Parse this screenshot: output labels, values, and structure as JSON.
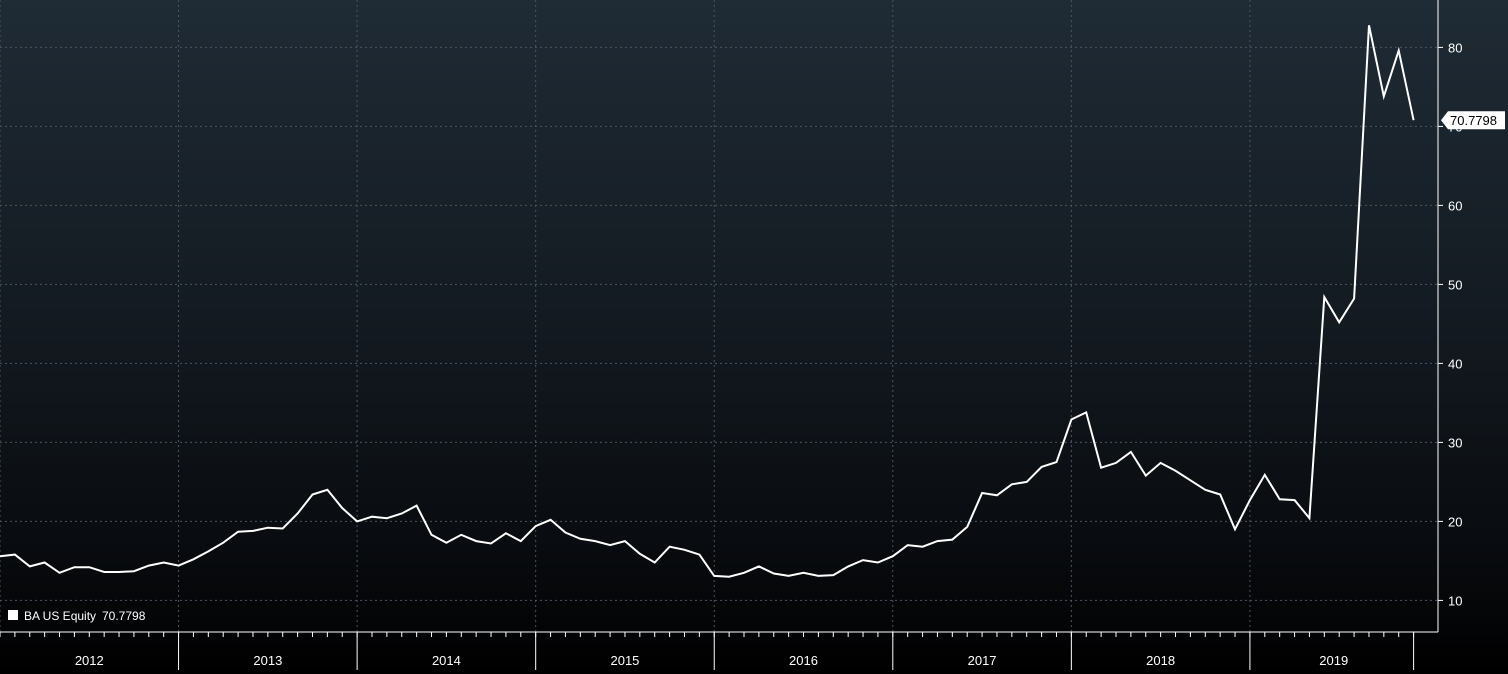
{
  "chart_data": {
    "type": "line",
    "title": "",
    "xlabel": "",
    "ylabel": "",
    "x_tick_labels": [
      "2012",
      "2013",
      "2014",
      "2015",
      "2016",
      "2017",
      "2018",
      "2019"
    ],
    "y_ticks": [
      10,
      20,
      30,
      40,
      50,
      60,
      70,
      80
    ],
    "ylim": [
      6,
      86
    ],
    "grid": true,
    "legend_position": "bottom-left",
    "series": [
      {
        "name": "BA US Equity",
        "last_value_label": "70.7798",
        "color": "#ffffff",
        "points": [
          [
            "2011-12",
            15.6
          ],
          [
            "2012-01",
            15.8
          ],
          [
            "2012-02",
            14.3
          ],
          [
            "2012-03",
            14.8
          ],
          [
            "2012-04",
            13.5
          ],
          [
            "2012-05",
            14.2
          ],
          [
            "2012-06",
            14.2
          ],
          [
            "2012-07",
            13.6
          ],
          [
            "2012-08",
            13.6
          ],
          [
            "2012-09",
            13.7
          ],
          [
            "2012-10",
            14.4
          ],
          [
            "2012-11",
            14.8
          ],
          [
            "2012-12",
            14.4
          ],
          [
            "2013-01",
            15.2
          ],
          [
            "2013-02",
            16.2
          ],
          [
            "2013-03",
            17.3
          ],
          [
            "2013-04",
            18.7
          ],
          [
            "2013-05",
            18.8
          ],
          [
            "2013-06",
            19.2
          ],
          [
            "2013-07",
            19.1
          ],
          [
            "2013-08",
            21.0
          ],
          [
            "2013-09",
            23.4
          ],
          [
            "2013-10",
            24.0
          ],
          [
            "2013-11",
            21.7
          ],
          [
            "2013-12",
            20.0
          ],
          [
            "2014-01",
            20.6
          ],
          [
            "2014-02",
            20.4
          ],
          [
            "2014-03",
            21.0
          ],
          [
            "2014-04",
            22.0
          ],
          [
            "2014-05",
            18.3
          ],
          [
            "2014-06",
            17.3
          ],
          [
            "2014-07",
            18.3
          ],
          [
            "2014-08",
            17.5
          ],
          [
            "2014-09",
            17.2
          ],
          [
            "2014-10",
            18.5
          ],
          [
            "2014-11",
            17.5
          ],
          [
            "2014-12",
            19.4
          ],
          [
            "2015-01",
            20.2
          ],
          [
            "2015-02",
            18.6
          ],
          [
            "2015-03",
            17.8
          ],
          [
            "2015-04",
            17.5
          ],
          [
            "2015-05",
            17.0
          ],
          [
            "2015-06",
            17.5
          ],
          [
            "2015-07",
            15.9
          ],
          [
            "2015-08",
            14.8
          ],
          [
            "2015-09",
            16.8
          ],
          [
            "2015-10",
            16.4
          ],
          [
            "2015-11",
            15.8
          ],
          [
            "2015-12",
            13.1
          ],
          [
            "2016-01",
            13.0
          ],
          [
            "2016-02",
            13.5
          ],
          [
            "2016-03",
            14.3
          ],
          [
            "2016-04",
            13.4
          ],
          [
            "2016-05",
            13.1
          ],
          [
            "2016-06",
            13.5
          ],
          [
            "2016-07",
            13.1
          ],
          [
            "2016-08",
            13.2
          ],
          [
            "2016-09",
            14.3
          ],
          [
            "2016-10",
            15.1
          ],
          [
            "2016-11",
            14.8
          ],
          [
            "2016-12",
            15.6
          ],
          [
            "2017-01",
            17.0
          ],
          [
            "2017-02",
            16.8
          ],
          [
            "2017-03",
            17.5
          ],
          [
            "2017-04",
            17.7
          ],
          [
            "2017-05",
            19.3
          ],
          [
            "2017-06",
            23.6
          ],
          [
            "2017-07",
            23.3
          ],
          [
            "2017-08",
            24.7
          ],
          [
            "2017-09",
            25.0
          ],
          [
            "2017-10",
            26.9
          ],
          [
            "2017-11",
            27.5
          ],
          [
            "2017-12",
            32.9
          ],
          [
            "2018-01",
            33.8
          ],
          [
            "2018-02",
            26.8
          ],
          [
            "2018-03",
            27.4
          ],
          [
            "2018-04",
            28.8
          ],
          [
            "2018-05",
            25.8
          ],
          [
            "2018-06",
            27.4
          ],
          [
            "2018-07",
            26.4
          ],
          [
            "2018-08",
            25.2
          ],
          [
            "2018-09",
            24.0
          ],
          [
            "2018-10",
            23.4
          ],
          [
            "2018-11",
            19.0
          ],
          [
            "2018-12",
            22.7
          ],
          [
            "2019-01",
            25.9
          ],
          [
            "2019-02",
            22.8
          ],
          [
            "2019-03",
            22.7
          ],
          [
            "2019-04",
            20.4
          ],
          [
            "2019-05",
            48.4
          ],
          [
            "2019-06",
            45.2
          ],
          [
            "2019-07",
            48.2
          ],
          [
            "2019-08",
            82.8
          ],
          [
            "2019-09",
            73.8
          ],
          [
            "2019-10",
            79.6
          ],
          [
            "2019-11",
            70.78
          ]
        ]
      }
    ]
  }
}
